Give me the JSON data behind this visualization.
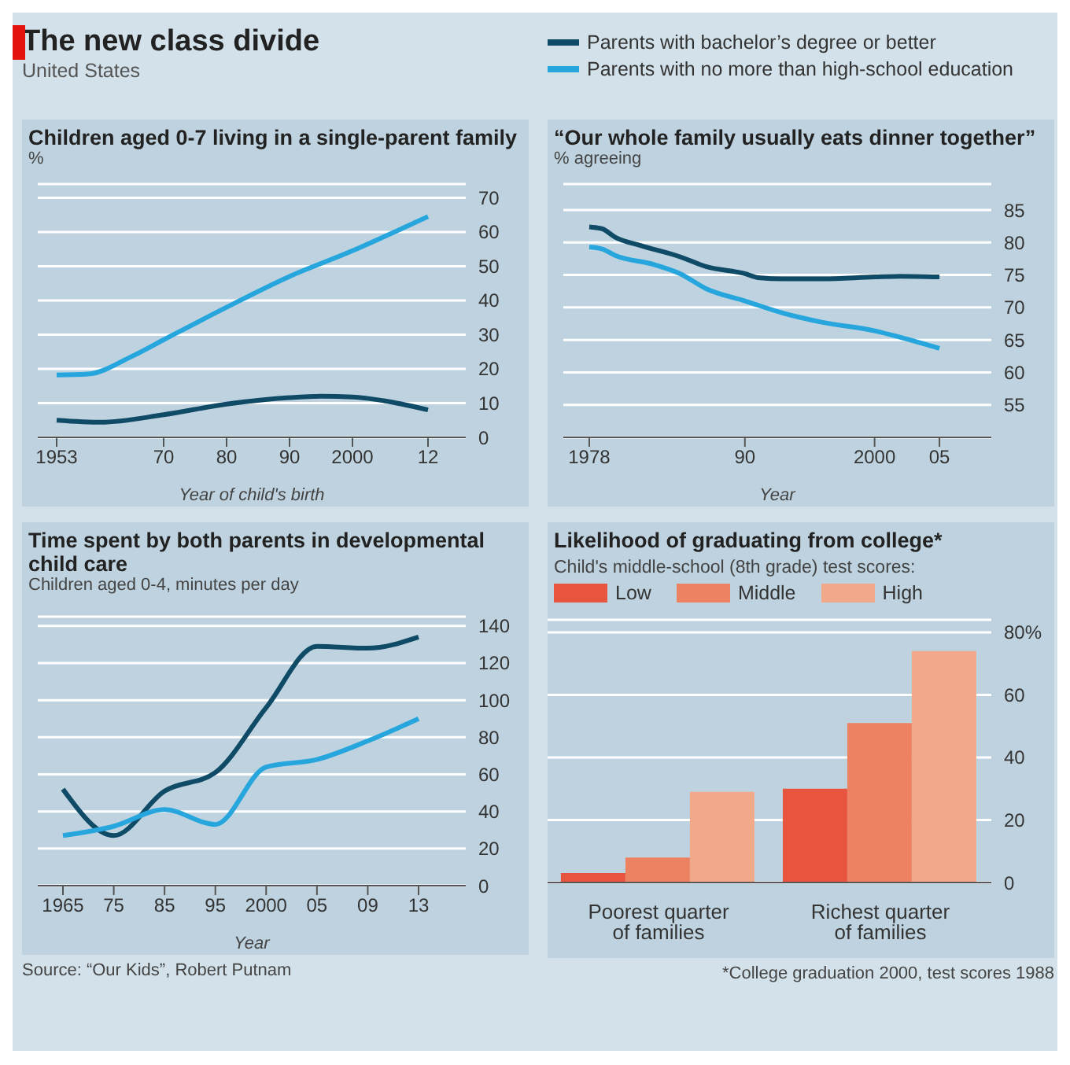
{
  "chart_data": [
    {
      "type": "line",
      "title": "Children aged 0-7 living in a single-parent family",
      "ylabel": "%",
      "xlabel": "Year of child's birth",
      "annotations": [
        "The new class divide",
        "United States"
      ],
      "xlim": [
        1950,
        2018
      ],
      "xticks": [
        1953,
        {
          "value": 1970,
          "label": "70"
        },
        {
          "value": 1980,
          "label": "80"
        },
        {
          "value": 1990,
          "label": "90"
        },
        2000,
        {
          "value": 2012,
          "label": "12"
        }
      ],
      "ylim": [
        0,
        74
      ],
      "yticks": [
        0,
        10,
        20,
        30,
        40,
        50,
        60,
        70
      ],
      "grid": "y",
      "series": [
        {
          "color": "#0f4a66",
          "x": [
            1953,
            1960,
            1970,
            1980,
            1990,
            1995,
            2000,
            2005,
            2012
          ],
          "values": [
            5,
            4.4,
            6.6,
            9.7,
            11.6,
            12,
            11.8,
            10.7,
            8
          ]
        },
        {
          "color": "#27a6dd",
          "x": [
            1953,
            1958,
            1965,
            1970,
            1980,
            1990,
            2000,
            2005,
            2012
          ],
          "values": [
            18.2,
            18.5,
            23.7,
            28.5,
            38,
            47,
            54.5,
            58.6,
            64.5
          ]
        }
      ]
    },
    {
      "type": "line",
      "title": "“Our whole family usually eats dinner together”",
      "ylabel": "% agreeing",
      "xlabel": "Year",
      "xlim": [
        1976,
        2009
      ],
      "xticks": [
        1978,
        {
          "value": 1990,
          "label": "90"
        },
        2000,
        {
          "value": 2005,
          "label": "05"
        }
      ],
      "ylim": [
        50,
        89
      ],
      "yticks": [
        55,
        60,
        65,
        70,
        75,
        80,
        85
      ],
      "grid": "y",
      "legend": "top",
      "series": [
        {
          "name": "Parents with bachelor’s degree or better",
          "color": "#0f4a66",
          "x": [
            1978,
            1979,
            1980,
            1982,
            1985,
            1987,
            1990,
            1991,
            1993,
            1996,
            2000,
            2002,
            2005
          ],
          "values": [
            82.4,
            82.1,
            80.8,
            79.5,
            77.8,
            76.3,
            75.2,
            74.6,
            74.4,
            74.4,
            74.7,
            74.8,
            74.7
          ]
        },
        {
          "name": "Parents with no more than high-school education",
          "color": "#27a6dd",
          "x": [
            1978,
            1979,
            1980,
            1983,
            1985,
            1987,
            1990,
            1993,
            1996,
            2000,
            2002,
            2005
          ],
          "values": [
            79.3,
            79,
            78,
            76.6,
            75.2,
            72.9,
            71,
            69.1,
            67.7,
            66.4,
            65.4,
            63.7
          ]
        }
      ]
    },
    {
      "type": "line",
      "title": "Time spent by both parents in developmental child care",
      "ylabel": "Children aged 0-4, minutes per day",
      "xlabel": "Year",
      "annotations": [
        "Source: “Our Kids”, Robert Putnam"
      ],
      "categories": [
        "1965",
        "75",
        "85",
        "95",
        "2000",
        "05",
        "09",
        "13"
      ],
      "ylim": [
        0,
        145
      ],
      "yticks": [
        0,
        20,
        40,
        60,
        80,
        100,
        120,
        140
      ],
      "grid": "y",
      "series": [
        {
          "color": "#0f4a66",
          "values": [
            52,
            27,
            51,
            61,
            96,
            129,
            128,
            134
          ]
        },
        {
          "color": "#27a6dd",
          "values": [
            27,
            32,
            41,
            33,
            64,
            68,
            78,
            90
          ]
        }
      ]
    },
    {
      "type": "bar",
      "title": "Likelihood of graduating from college*",
      "legend_title": "Child's middle-school (8th grade) test scores:",
      "annotations": [
        "*College graduation 2000, test scores 1988"
      ],
      "categories": [
        "Poorest quarter of families",
        "Richest quarter of families"
      ],
      "ylim": [
        0,
        84
      ],
      "yticks": [
        0,
        20,
        40,
        60,
        {
          "value": 80,
          "label": "80%"
        }
      ],
      "grid": "y",
      "legend": "top",
      "series": [
        {
          "name": "Low",
          "color": "#e8553e",
          "values": [
            3,
            30
          ]
        },
        {
          "name": "Middle",
          "color": "#ec8262",
          "values": [
            8,
            51
          ]
        },
        {
          "name": "High",
          "color": "#f2a98a",
          "values": [
            29,
            74
          ]
        }
      ]
    }
  ]
}
